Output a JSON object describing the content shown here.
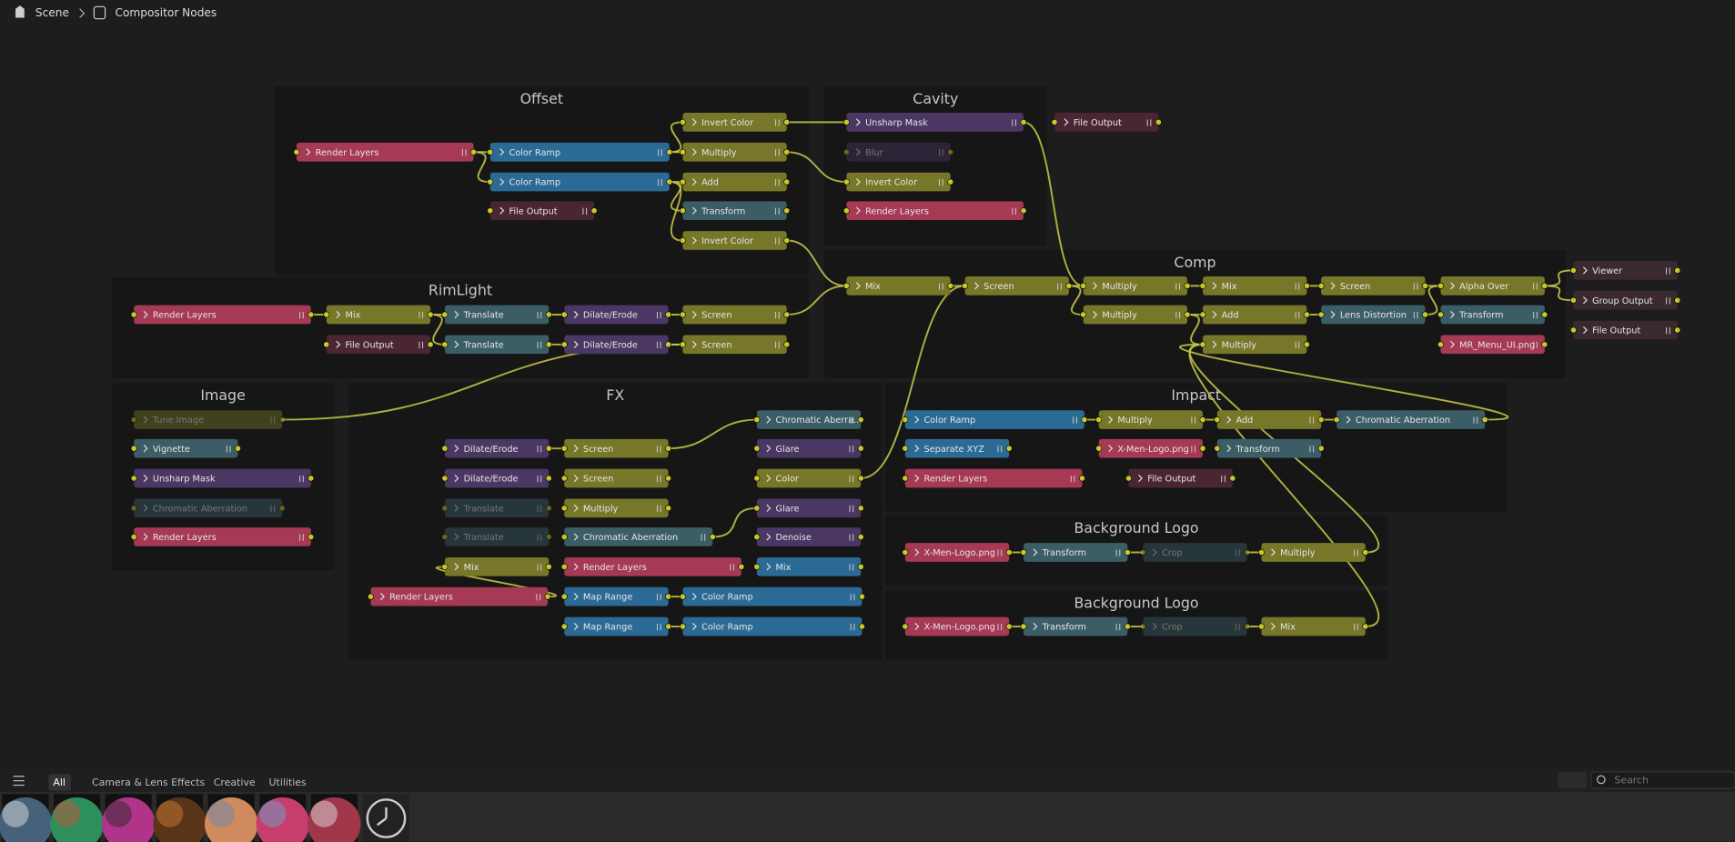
{
  "breadcrumb": [
    "Scene",
    "Compositor Nodes"
  ],
  "frames": [
    {
      "title": "Offset"
    },
    {
      "title": "Cavity"
    },
    {
      "title": "RimLight"
    },
    {
      "title": "Comp"
    },
    {
      "title": "Image"
    },
    {
      "title": "FX"
    },
    {
      "title": "Impact"
    },
    {
      "title": "Background Logo"
    },
    {
      "title": "Background Logo"
    }
  ],
  "nodes": [
    {
      "label": "Render Layers"
    },
    {
      "label": "Color Ramp"
    },
    {
      "label": "Color Ramp"
    },
    {
      "label": "File Output"
    },
    {
      "label": "Invert Color"
    },
    {
      "label": "Multiply"
    },
    {
      "label": "Add"
    },
    {
      "label": "Transform"
    },
    {
      "label": "Invert Color"
    },
    {
      "label": "Unsharp Mask"
    },
    {
      "label": "Blur"
    },
    {
      "label": "Invert Color"
    },
    {
      "label": "Render Layers"
    },
    {
      "label": "File Output"
    },
    {
      "label": "Render Layers"
    },
    {
      "label": "Mix"
    },
    {
      "label": "File Output"
    },
    {
      "label": "Translate"
    },
    {
      "label": "Translate"
    },
    {
      "label": "Dilate/Erode"
    },
    {
      "label": "Dilate/Erode"
    },
    {
      "label": "Screen"
    },
    {
      "label": "Screen"
    },
    {
      "label": "Mix"
    },
    {
      "label": "Screen"
    },
    {
      "label": "Multiply"
    },
    {
      "label": "Multiply"
    },
    {
      "label": "Mix"
    },
    {
      "label": "Add"
    },
    {
      "label": "Multiply"
    },
    {
      "label": "Screen"
    },
    {
      "label": "Lens Distortion"
    },
    {
      "label": "Alpha Over"
    },
    {
      "label": "Transform"
    },
    {
      "label": "MR_Menu_UI.png"
    },
    {
      "label": "Viewer"
    },
    {
      "label": "Group Output"
    },
    {
      "label": "File Output"
    },
    {
      "label": "Tune Image"
    },
    {
      "label": "Vignette"
    },
    {
      "label": "Unsharp Mask"
    },
    {
      "label": "Chromatic Aberration"
    },
    {
      "label": "Render Layers"
    },
    {
      "label": "Dilate/Erode"
    },
    {
      "label": "Dilate/Erode"
    },
    {
      "label": "Translate"
    },
    {
      "label": "Translate"
    },
    {
      "label": "Mix"
    },
    {
      "label": "Render Layers"
    },
    {
      "label": "Screen"
    },
    {
      "label": "Screen"
    },
    {
      "label": "Multiply"
    },
    {
      "label": "Chromatic Aberration"
    },
    {
      "label": "Render Layers"
    },
    {
      "label": "Map Range"
    },
    {
      "label": "Map Range"
    },
    {
      "label": "Chromatic Aberra..."
    },
    {
      "label": "Glare"
    },
    {
      "label": "Color"
    },
    {
      "label": "Glare"
    },
    {
      "label": "Denoise"
    },
    {
      "label": "Mix"
    },
    {
      "label": "Color Ramp"
    },
    {
      "label": "Color Ramp"
    },
    {
      "label": "Color Ramp"
    },
    {
      "label": "Separate XYZ"
    },
    {
      "label": "Render Layers"
    },
    {
      "label": "Multiply"
    },
    {
      "label": "X-Men-Logo.png"
    },
    {
      "label": "File Output"
    },
    {
      "label": "Add"
    },
    {
      "label": "Transform"
    },
    {
      "label": "Chromatic Aberration"
    },
    {
      "label": "X-Men-Logo.png"
    },
    {
      "label": "Transform"
    },
    {
      "label": "Crop"
    },
    {
      "label": "Multiply"
    },
    {
      "label": "X-Men-Logo.png"
    },
    {
      "label": "Transform"
    },
    {
      "label": "Crop"
    },
    {
      "label": "Mix"
    }
  ],
  "asset_tabs": [
    "All",
    "Camera & Lens Effects",
    "Creative",
    "Utilities"
  ],
  "search_placeholder": "Search"
}
